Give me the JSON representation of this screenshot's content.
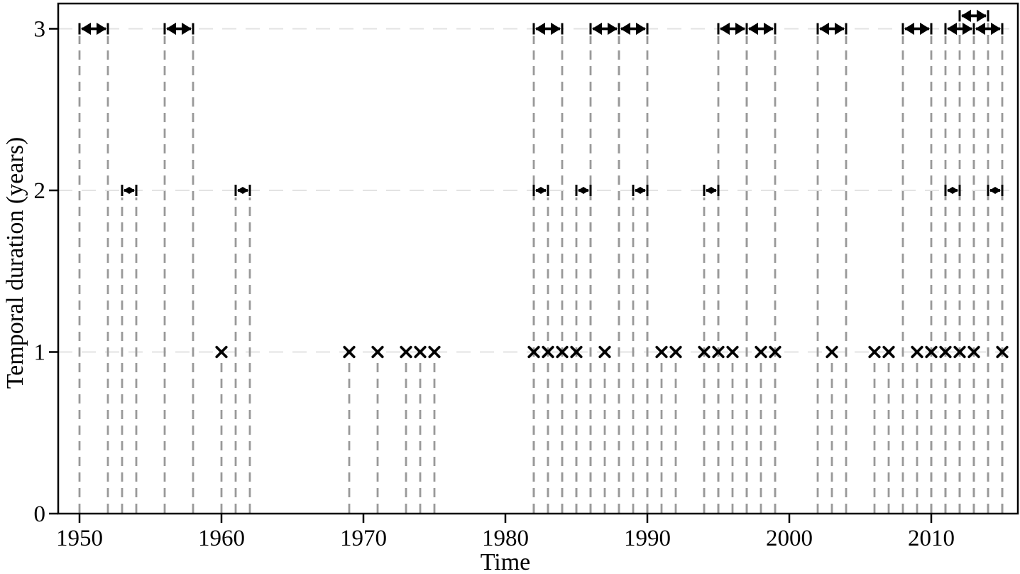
{
  "chart_data": {
    "type": "scatter",
    "title": "",
    "xlabel": "Time",
    "ylabel": "Temporal duration (years)",
    "xlim": [
      1948.5,
      2016.1
    ],
    "ylim": [
      0,
      3.16
    ],
    "x_ticks": [
      1950,
      1960,
      1970,
      1980,
      1990,
      2000,
      2010
    ],
    "y_ticks": [
      0,
      1,
      2,
      3
    ],
    "grid": "horizontal-dashed",
    "legend": "none",
    "colors": {
      "data": "#000000",
      "stems": "#999999",
      "gridlines": "#e3e3e3",
      "axis": "#000000",
      "background": "#ffffff"
    },
    "single_year_events": {
      "marker": "x",
      "duration_years": 1,
      "years": [
        1960,
        1969,
        1971,
        1973,
        1974,
        1975,
        1982,
        1983,
        1984,
        1985,
        1987,
        1991,
        1992,
        1994,
        1995,
        1996,
        1998,
        1999,
        2003,
        2006,
        2007,
        2009,
        2010,
        2011,
        2012,
        2013,
        2015
      ]
    },
    "multi_year_events": [
      {
        "start": 1950,
        "end": 1952,
        "duration_years": 3
      },
      {
        "start": 1953,
        "end": 1954,
        "duration_years": 2
      },
      {
        "start": 1956,
        "end": 1958,
        "duration_years": 3
      },
      {
        "start": 1961,
        "end": 1962,
        "duration_years": 2
      },
      {
        "start": 1982,
        "end": 1983,
        "duration_years": 2
      },
      {
        "start": 1982,
        "end": 1984,
        "duration_years": 3
      },
      {
        "start": 1985,
        "end": 1986,
        "duration_years": 2
      },
      {
        "start": 1986,
        "end": 1988,
        "duration_years": 3
      },
      {
        "start": 1988,
        "end": 1990,
        "duration_years": 3
      },
      {
        "start": 1989,
        "end": 1990,
        "duration_years": 2
      },
      {
        "start": 1994,
        "end": 1995,
        "duration_years": 2
      },
      {
        "start": 1995,
        "end": 1997,
        "duration_years": 3
      },
      {
        "start": 1997,
        "end": 1999,
        "duration_years": 3
      },
      {
        "start": 2002,
        "end": 2004,
        "duration_years": 3
      },
      {
        "start": 2008,
        "end": 2010,
        "duration_years": 3
      },
      {
        "start": 2011,
        "end": 2012,
        "duration_years": 2
      },
      {
        "start": 2011,
        "end": 2013,
        "duration_years": 3
      },
      {
        "start": 2012,
        "end": 2014,
        "duration_years": 3,
        "y_plot": 3.08
      },
      {
        "start": 2013,
        "end": 2015,
        "duration_years": 3
      },
      {
        "start": 2014,
        "end": 2015,
        "duration_years": 2
      }
    ]
  }
}
